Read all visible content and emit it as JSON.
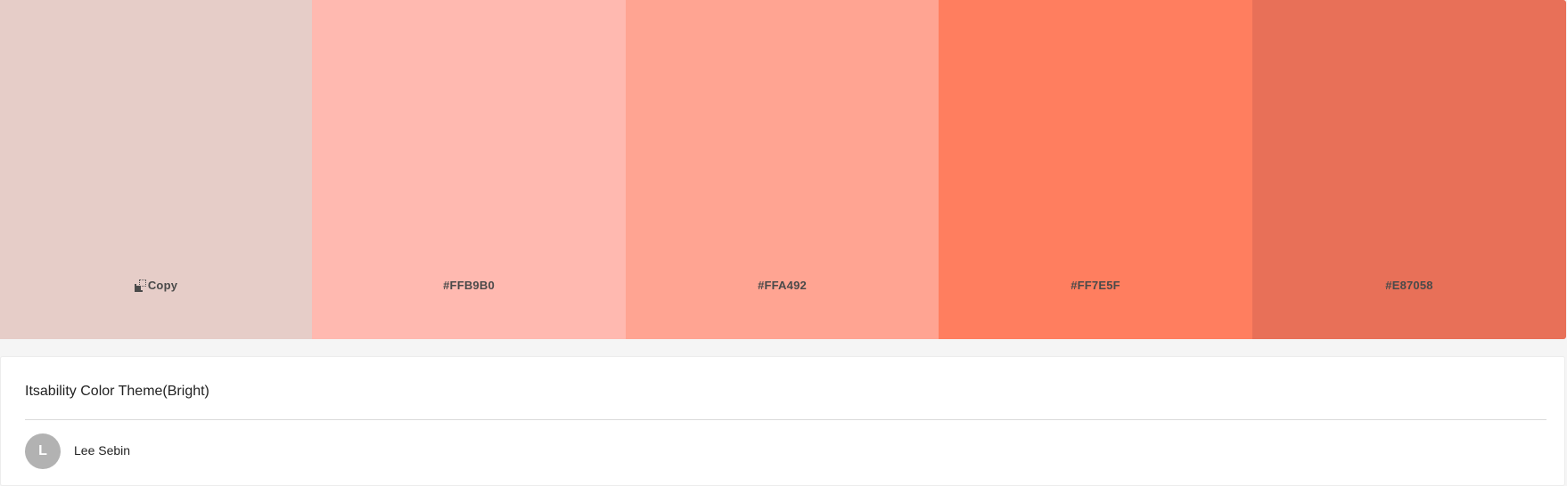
{
  "palette": {
    "swatches": [
      {
        "hex": "#E6CDC8",
        "label": "Copy"
      },
      {
        "hex": "#FFB9B0",
        "label": "#FFB9B0"
      },
      {
        "hex": "#FFA492",
        "label": "#FFA492"
      },
      {
        "hex": "#FF7E5F",
        "label": "#FF7E5F"
      },
      {
        "hex": "#E87058",
        "label": "#E87058"
      }
    ],
    "label_color": "#4a4a4a"
  },
  "theme": {
    "title": "Itsability Color Theme(Bright)"
  },
  "author": {
    "initial": "L",
    "name": "Lee Sebin",
    "avatar_color": "#b2b2b2"
  },
  "icons": {
    "copy": "copy-icon"
  }
}
